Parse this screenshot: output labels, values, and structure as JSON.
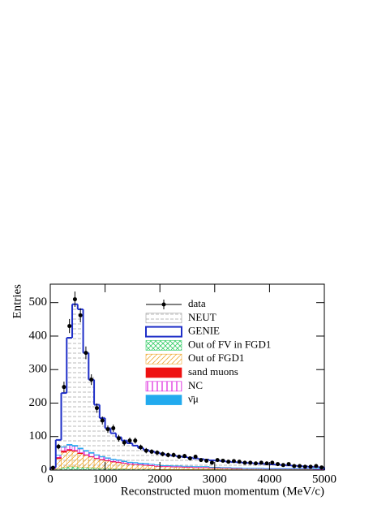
{
  "chart_data": {
    "type": "histogram",
    "xlabel": "Reconstructed muon momentum (MeV/c)",
    "ylabel": "Entries",
    "bins": [
      0,
      100,
      200,
      300,
      400,
      500,
      600,
      700,
      800,
      900,
      1000,
      1100,
      1200,
      1300,
      1400,
      1500,
      1600,
      1700,
      1800,
      1900,
      2000,
      2100,
      2200,
      2300,
      2400,
      2500,
      2600,
      2700,
      2800,
      2900,
      3000,
      3100,
      3200,
      3300,
      3400,
      3500,
      3600,
      3700,
      3800,
      3900,
      4000,
      4100,
      4200,
      4300,
      4400,
      4500,
      4600,
      4700,
      4800,
      4900,
      5000
    ],
    "xlim": [
      0,
      5000
    ],
    "xticks": [
      0,
      1000,
      2000,
      3000,
      4000,
      5000
    ],
    "ylim": [
      0,
      555
    ],
    "yticks": [
      0,
      100,
      200,
      300,
      400,
      500
    ],
    "series": [
      {
        "name": "data",
        "color": "#000000",
        "values": [
          7,
          70,
          248,
          430,
          510,
          462,
          350,
          270,
          185,
          148,
          122,
          125,
          95,
          82,
          88,
          88,
          68,
          58,
          55,
          52,
          48,
          45,
          45,
          40,
          42,
          35,
          40,
          30,
          28,
          22,
          30,
          28,
          25,
          27,
          25,
          22,
          22,
          20,
          22,
          20,
          22,
          18,
          15,
          18,
          12,
          12,
          10,
          10,
          12,
          8
        ],
        "errors": [
          3,
          8,
          16,
          21,
          23,
          21,
          19,
          16,
          14,
          12,
          11,
          11,
          10,
          9,
          9,
          9,
          8,
          8,
          7,
          7,
          7,
          7,
          7,
          6,
          6,
          6,
          6,
          5,
          5,
          5,
          5,
          5,
          5,
          5,
          5,
          5,
          5,
          4,
          5,
          4,
          5,
          4,
          4,
          4,
          3,
          3,
          3,
          3,
          3,
          3
        ]
      },
      {
        "name": "NEUT",
        "color": "#9a9a9a",
        "values": [
          10,
          95,
          235,
          400,
          490,
          470,
          360,
          280,
          200,
          160,
          130,
          112,
          100,
          90,
          82,
          75,
          68,
          62,
          58,
          54,
          50,
          47,
          44,
          42,
          40,
          38,
          36,
          34,
          32,
          30,
          29,
          28,
          26,
          25,
          24,
          23,
          22,
          21,
          20,
          19,
          18,
          17,
          16,
          15,
          14,
          13,
          12,
          11,
          10,
          9
        ]
      },
      {
        "name": "GENIE",
        "color": "#1f2fc8",
        "values": [
          8,
          90,
          230,
          395,
          495,
          480,
          350,
          270,
          195,
          155,
          125,
          110,
          98,
          88,
          80,
          73,
          66,
          60,
          56,
          52,
          48,
          45,
          43,
          41,
          39,
          37,
          35,
          33,
          31,
          29,
          28,
          27,
          25,
          24,
          23,
          22,
          21,
          20,
          19,
          18,
          17,
          16,
          15,
          14,
          13,
          12,
          11,
          10,
          9,
          8
        ]
      },
      {
        "name": "Out of FV in FGD1",
        "color": "#33cc66",
        "values": [
          1,
          4,
          8,
          10,
          10,
          9,
          8,
          7,
          6,
          5,
          5,
          4,
          4,
          4,
          3,
          3,
          3,
          3,
          3,
          2,
          2,
          2,
          2,
          2,
          2,
          2,
          2,
          2,
          2,
          2,
          2,
          1,
          1,
          1,
          1,
          1,
          1,
          1,
          1,
          1,
          1,
          1,
          1,
          1,
          1,
          1,
          1,
          1,
          1,
          1
        ]
      },
      {
        "name": "Out of FGD1",
        "color": "#f0a830",
        "values": [
          3,
          30,
          45,
          48,
          46,
          40,
          36,
          32,
          28,
          25,
          22,
          20,
          18,
          16,
          14,
          13,
          12,
          11,
          10,
          9,
          8,
          8,
          7,
          7,
          6,
          6,
          5,
          5,
          5,
          4,
          4,
          4,
          4,
          3,
          3,
          3,
          3,
          3,
          3,
          2,
          2,
          2,
          2,
          2,
          2,
          2,
          2,
          2,
          1,
          1
        ]
      },
      {
        "name": "sand muons",
        "color": "#ee1111",
        "values": [
          0,
          4,
          5,
          4,
          3,
          3,
          2,
          2,
          2,
          2,
          2,
          2,
          2,
          1,
          1,
          1,
          1,
          1,
          1,
          1,
          1,
          1,
          1,
          1,
          1,
          1,
          1,
          1,
          1,
          1,
          1,
          1,
          1,
          1,
          1,
          0,
          0,
          0,
          0,
          0,
          0,
          0,
          0,
          0,
          0,
          0,
          0,
          0,
          0,
          0
        ]
      },
      {
        "name": "NC",
        "color": "#dd22dd",
        "values": [
          1,
          6,
          10,
          12,
          12,
          11,
          10,
          9,
          8,
          7,
          6,
          5,
          5,
          4,
          4,
          4,
          3,
          3,
          3,
          3,
          2,
          2,
          2,
          2,
          2,
          2,
          2,
          2,
          2,
          1,
          1,
          1,
          1,
          1,
          1,
          1,
          1,
          1,
          1,
          1,
          1,
          1,
          1,
          1,
          1,
          1,
          1,
          1,
          1,
          1
        ]
      },
      {
        "name": "ν̄μ",
        "color": "#22aaee",
        "values": [
          0,
          1,
          2,
          3,
          3,
          3,
          3,
          3,
          2,
          2,
          2,
          2,
          2,
          2,
          2,
          2,
          2,
          2,
          1,
          1,
          1,
          1,
          1,
          1,
          1,
          1,
          1,
          1,
          1,
          1,
          1,
          1,
          1,
          1,
          1,
          1,
          1,
          1,
          1,
          1,
          1,
          1,
          1,
          1,
          1,
          1,
          1,
          1,
          1,
          1
        ]
      }
    ]
  }
}
